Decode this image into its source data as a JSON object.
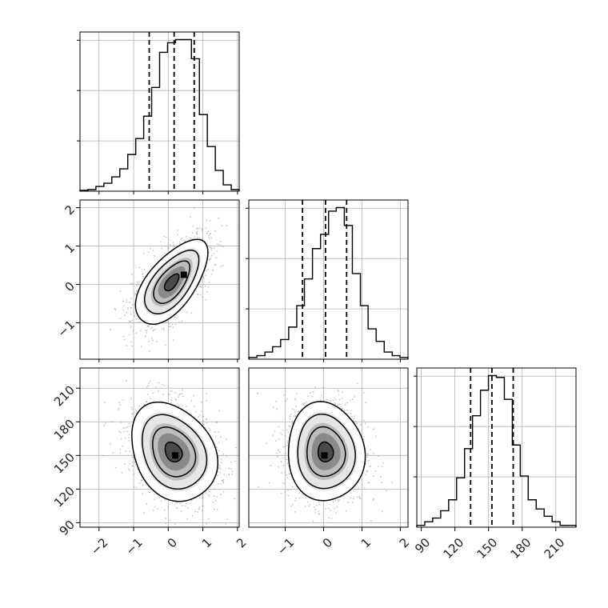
{
  "chart_data": {
    "type": "corner",
    "ticks": {
      "p0": [
        "−2",
        "−1",
        "0",
        "1",
        "2"
      ],
      "p1": [
        "−1",
        "0",
        "1",
        "2"
      ],
      "p2": [
        "90",
        "120",
        "150",
        "180",
        "210"
      ]
    },
    "ranges": {
      "p0": [
        -2.55,
        2.05
      ],
      "p1": [
        -1.95,
        2.2
      ],
      "p2": [
        86,
        228
      ]
    },
    "histograms": [
      {
        "param": "p0",
        "bin_edges": [
          -2.55,
          -2.32,
          -2.09,
          -1.86,
          -1.63,
          -1.4,
          -1.17,
          -0.94,
          -0.71,
          -0.48,
          -0.25,
          -0.02,
          0.21,
          0.44,
          0.67,
          0.9,
          1.13,
          1.36,
          1.59,
          1.82,
          2.05
        ],
        "counts": [
          0.5,
          1,
          3,
          5,
          9,
          14,
          23,
          33,
          47,
          65,
          87,
          93,
          95,
          95,
          83,
          48,
          28,
          13,
          4,
          1
        ],
        "quantiles": [
          -0.55,
          0.17,
          0.75
        ]
      },
      {
        "param": "p1",
        "bin_edges": [
          -1.95,
          -1.74,
          -1.53,
          -1.33,
          -1.12,
          -0.91,
          -0.7,
          -0.5,
          -0.29,
          -0.08,
          0.13,
          0.33,
          0.54,
          0.75,
          0.96,
          1.16,
          1.37,
          1.58,
          1.79,
          1.99,
          2.2
        ],
        "counts": [
          1,
          2,
          4,
          7,
          11,
          18,
          30,
          45,
          62,
          70,
          83,
          85,
          75,
          48,
          30,
          17,
          10,
          4,
          2,
          1
        ],
        "quantiles": [
          -0.55,
          0.05,
          0.6
        ]
      },
      {
        "param": "p2",
        "bin_edges": [
          86,
          93.1,
          100.2,
          107.3,
          114.4,
          121.5,
          128.6,
          135.7,
          142.8,
          149.9,
          157,
          164.1,
          171.2,
          178.3,
          185.4,
          192.5,
          199.6,
          206.7,
          213.8,
          220.9,
          228
        ],
        "counts": [
          1,
          3,
          5,
          9,
          15,
          27,
          43,
          61,
          75,
          83,
          82,
          70,
          45,
          28,
          15,
          10,
          6,
          3,
          1,
          1
        ],
        "quantiles": [
          134,
          153,
          172
        ]
      }
    ],
    "pairs": [
      {
        "x": "p0",
        "y": "p1",
        "mean": [
          0.1,
          0.05
        ],
        "sigma": [
          0.52,
          0.55
        ],
        "rho": 0.62,
        "mode": [
          0.45,
          0.25
        ]
      },
      {
        "x": "p0",
        "y": "p2",
        "mean": [
          0.15,
          153
        ],
        "sigma": [
          0.62,
          22
        ],
        "rho": -0.25,
        "mode": [
          0.2,
          150
        ]
      },
      {
        "x": "p1",
        "y": "p2",
        "mean": [
          0.05,
          153
        ],
        "sigma": [
          0.5,
          22
        ],
        "rho": -0.05,
        "mode": [
          0.02,
          150
        ]
      }
    ],
    "contour_levels_sigma": [
      0.5,
      1.0,
      1.5,
      2.0
    ],
    "quantile_line_style": "dashed",
    "grid": true
  }
}
